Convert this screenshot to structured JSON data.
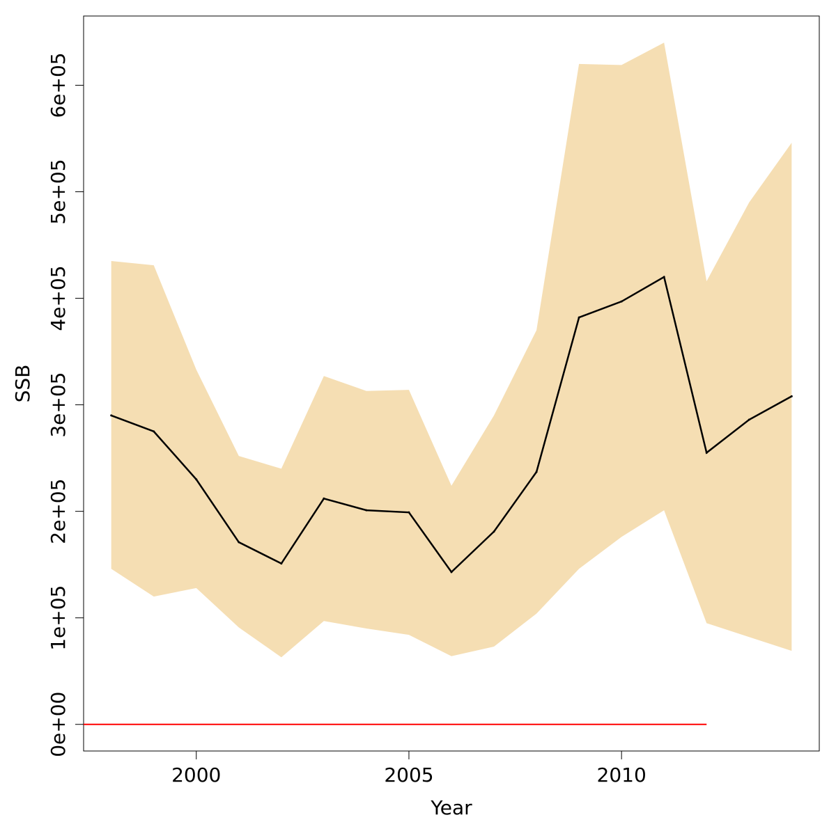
{
  "chart_data": {
    "type": "area",
    "title": "",
    "xlabel": "Year",
    "ylabel": "SSB",
    "xlim": [
      1997.35,
      2014.65
    ],
    "ylim": [
      -25000,
      665000
    ],
    "x_ticks": [
      {
        "value": 2000,
        "label": "2000"
      },
      {
        "value": 2005,
        "label": "2005"
      },
      {
        "value": 2010,
        "label": "2010"
      }
    ],
    "y_ticks": [
      {
        "value": 0,
        "label": "0e+00"
      },
      {
        "value": 100000,
        "label": "1e+05"
      },
      {
        "value": 200000,
        "label": "2e+05"
      },
      {
        "value": 300000,
        "label": "3e+05"
      },
      {
        "value": 400000,
        "label": "4e+05"
      },
      {
        "value": 500000,
        "label": "5e+05"
      },
      {
        "value": 600000,
        "label": "6e+05"
      }
    ],
    "grid": false,
    "legend": "none",
    "x": [
      1998,
      1999,
      2000,
      2001,
      2002,
      2003,
      2004,
      2005,
      2006,
      2007,
      2008,
      2009,
      2010,
      2011,
      2012,
      2013,
      2014
    ],
    "series": [
      {
        "role": "estimate",
        "values": [
          290000,
          275000,
          230000,
          171000,
          151000,
          212000,
          201000,
          199000,
          143000,
          181000,
          237000,
          382000,
          397000,
          420000,
          255000,
          286000,
          308000
        ],
        "color": "#000000"
      },
      {
        "role": "upper",
        "values": [
          435000,
          431000,
          333000,
          252000,
          240000,
          327000,
          313000,
          314000,
          224000,
          290000,
          370000,
          620000,
          619000,
          640000,
          416000,
          490000,
          546000
        ]
      },
      {
        "role": "lower",
        "values": [
          146000,
          120000,
          128000,
          91000,
          63000,
          97000,
          90000,
          84000,
          64000,
          73000,
          104000,
          146000,
          176000,
          201000,
          95000,
          82000,
          69000
        ]
      }
    ],
    "band_color": "#f5deb3",
    "reference_line": {
      "y": 0,
      "x_from": 1997.35,
      "x_to": 2012,
      "color": "#ff0000"
    }
  }
}
